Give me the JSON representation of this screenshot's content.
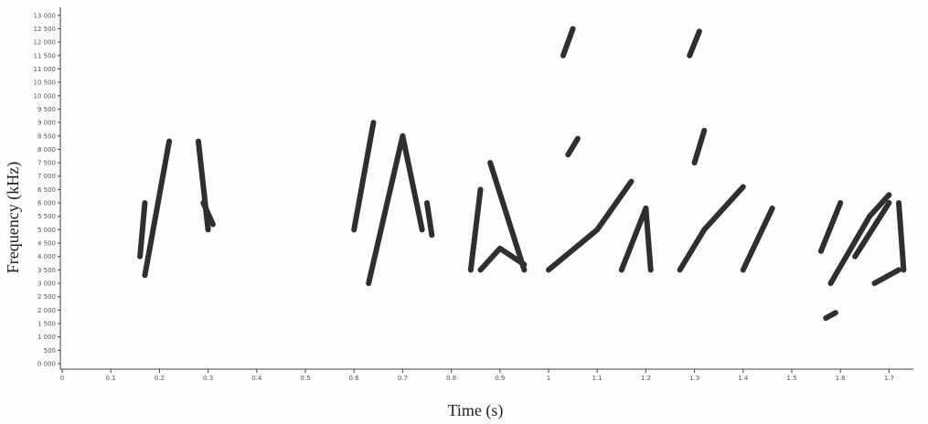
{
  "chart_data": {
    "type": "spectrogram",
    "xlabel": "Time (s)",
    "ylabel": "Frequency (kHz)",
    "xlim": [
      0,
      1.75
    ],
    "ylim": [
      0,
      13300
    ],
    "xticks": [
      0,
      0.1,
      0.2,
      0.3,
      0.4,
      0.5,
      0.6,
      0.7,
      0.8,
      0.9,
      1,
      1.1,
      1.2,
      1.3,
      1.4,
      1.5,
      1.6,
      1.7
    ],
    "yticks": [
      {
        "value": 0,
        "label": "0 000"
      },
      {
        "value": 500,
        "label": "500"
      },
      {
        "value": 1000,
        "label": "1 000"
      },
      {
        "value": 1500,
        "label": "1 500"
      },
      {
        "value": 2000,
        "label": "2 000"
      },
      {
        "value": 2500,
        "label": "2 500"
      },
      {
        "value": 3000,
        "label": "3 000"
      },
      {
        "value": 3500,
        "label": "3 500"
      },
      {
        "value": 4000,
        "label": "4 000"
      },
      {
        "value": 4500,
        "label": "4 500"
      },
      {
        "value": 5000,
        "label": "5 000"
      },
      {
        "value": 5500,
        "label": "5 500"
      },
      {
        "value": 6000,
        "label": "6 000"
      },
      {
        "value": 6500,
        "label": "6 500"
      },
      {
        "value": 7000,
        "label": "7 000"
      },
      {
        "value": 7500,
        "label": "7 500"
      },
      {
        "value": 8000,
        "label": "8 000"
      },
      {
        "value": 8500,
        "label": "8 500"
      },
      {
        "value": 9000,
        "label": "9 000"
      },
      {
        "value": 9500,
        "label": "9 500"
      },
      {
        "value": 10000,
        "label": "10 000"
      },
      {
        "value": 10500,
        "label": "10 500"
      },
      {
        "value": 11000,
        "label": "11 000"
      },
      {
        "value": 11500,
        "label": "11 500"
      },
      {
        "value": 12000,
        "label": "12 000"
      },
      {
        "value": 12500,
        "label": "12 500"
      },
      {
        "value": 13000,
        "label": "13 000"
      }
    ],
    "color": "#2f2f2f",
    "series": [
      {
        "x": [
          0.17,
          0.22
        ],
        "values": [
          3300,
          8300
        ]
      },
      {
        "x": [
          0.16,
          0.17
        ],
        "values": [
          4000,
          6000
        ]
      },
      {
        "x": [
          0.28,
          0.3
        ],
        "values": [
          8300,
          5000
        ]
      },
      {
        "x": [
          0.29,
          0.31
        ],
        "values": [
          6000,
          5200
        ]
      },
      {
        "x": [
          0.6,
          0.64
        ],
        "values": [
          5000,
          9000
        ]
      },
      {
        "x": [
          0.63,
          0.7
        ],
        "values": [
          3000,
          8500
        ]
      },
      {
        "x": [
          0.7,
          0.74
        ],
        "values": [
          8500,
          5000
        ]
      },
      {
        "x": [
          0.75,
          0.76
        ],
        "values": [
          6000,
          4800
        ]
      },
      {
        "x": [
          0.84,
          0.86
        ],
        "values": [
          3500,
          6500
        ]
      },
      {
        "x": [
          0.88,
          0.95
        ],
        "values": [
          7500,
          3500
        ]
      },
      {
        "x": [
          0.86,
          0.9,
          0.95
        ],
        "values": [
          3500,
          4300,
          3700
        ]
      },
      {
        "x": [
          1.0,
          1.1,
          1.17
        ],
        "values": [
          3500,
          5000,
          6800
        ]
      },
      {
        "x": [
          1.03,
          1.05
        ],
        "values": [
          11500,
          12500
        ]
      },
      {
        "x": [
          1.04,
          1.06
        ],
        "values": [
          7800,
          8400
        ]
      },
      {
        "x": [
          1.15,
          1.2
        ],
        "values": [
          3500,
          5800
        ]
      },
      {
        "x": [
          1.2,
          1.21
        ],
        "values": [
          5800,
          3500
        ]
      },
      {
        "x": [
          1.27,
          1.32,
          1.4
        ],
        "values": [
          3500,
          5000,
          6600
        ]
      },
      {
        "x": [
          1.29,
          1.31
        ],
        "values": [
          11500,
          12400
        ]
      },
      {
        "x": [
          1.3,
          1.32
        ],
        "values": [
          7500,
          8700
        ]
      },
      {
        "x": [
          1.4,
          1.46
        ],
        "values": [
          3500,
          5800
        ]
      },
      {
        "x": [
          1.56,
          1.6
        ],
        "values": [
          4200,
          6000
        ]
      },
      {
        "x": [
          1.58,
          1.66,
          1.7
        ],
        "values": [
          3000,
          5500,
          6300
        ]
      },
      {
        "x": [
          1.63,
          1.7
        ],
        "values": [
          4000,
          6000
        ]
      },
      {
        "x": [
          1.67,
          1.72
        ],
        "values": [
          3000,
          3500
        ]
      },
      {
        "x": [
          1.72,
          1.73
        ],
        "values": [
          6000,
          3500
        ]
      },
      {
        "x": [
          1.57,
          1.59
        ],
        "values": [
          1700,
          1900
        ]
      }
    ]
  }
}
